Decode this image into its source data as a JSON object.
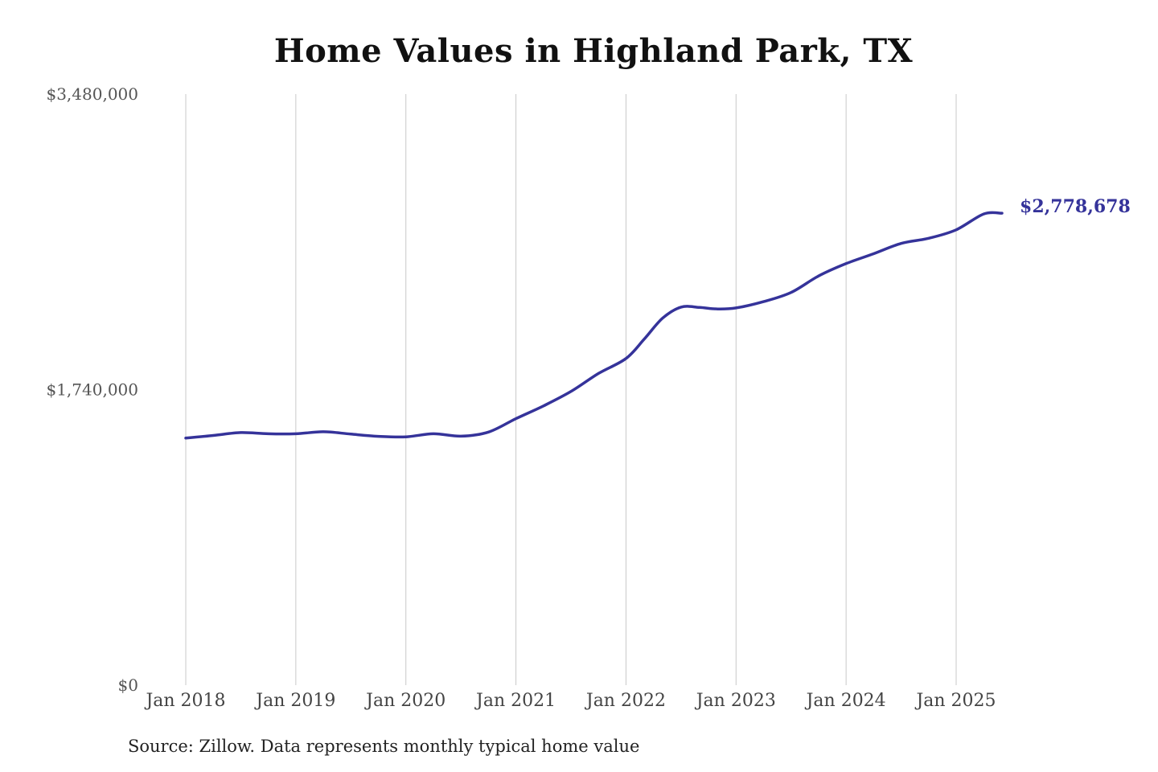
{
  "chart_data": {
    "type": "line",
    "title": "Home Values in Highland Park, TX",
    "source": "Source: Zillow. Data represents monthly typical home value",
    "xlabel": "",
    "ylabel": "",
    "ylim": [
      0,
      3480000
    ],
    "yticks": [
      "$0",
      "$1,740,000",
      "$3,480,000"
    ],
    "ytick_values": [
      0,
      1740000,
      3480000
    ],
    "xticks": [
      "Jan 2018",
      "Jan 2019",
      "Jan 2020",
      "Jan 2021",
      "Jan 2022",
      "Jan 2023",
      "Jan 2024",
      "Jan 2025"
    ],
    "xtick_values": [
      2018,
      2019,
      2020,
      2021,
      2022,
      2023,
      2024,
      2025
    ],
    "grid": "vertical",
    "line_color": "#35339a",
    "end_label": "$2,778,678",
    "series": [
      {
        "x": [
          "2018-01",
          "2018-04",
          "2018-07",
          "2018-10",
          "2019-01",
          "2019-04",
          "2019-07",
          "2019-10",
          "2020-01",
          "2020-04",
          "2020-07",
          "2020-10",
          "2021-01",
          "2021-04",
          "2021-07",
          "2021-10",
          "2022-01",
          "2022-03",
          "2022-05",
          "2022-07",
          "2022-09",
          "2022-11",
          "2023-01",
          "2023-04",
          "2023-07",
          "2023-10",
          "2024-01",
          "2024-04",
          "2024-07",
          "2024-10",
          "2025-01",
          "2025-04",
          "2025-06"
        ],
        "values": [
          1455000,
          1470000,
          1487000,
          1480000,
          1480000,
          1492000,
          1478000,
          1465000,
          1462000,
          1480000,
          1466000,
          1490000,
          1569000,
          1644000,
          1729000,
          1835000,
          1923000,
          2038000,
          2161000,
          2226000,
          2224000,
          2215000,
          2221000,
          2258000,
          2312000,
          2409000,
          2482000,
          2540000,
          2601000,
          2631000,
          2681000,
          2774000,
          2778678
        ]
      }
    ]
  }
}
